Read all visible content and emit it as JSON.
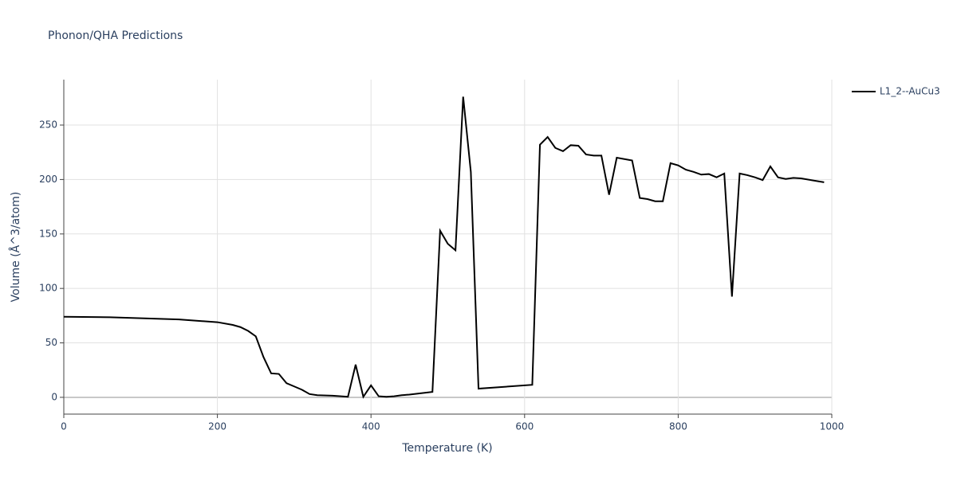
{
  "chart_data": {
    "type": "line",
    "title": "Phonon/QHA Predictions",
    "x_label": "Temperature (K)",
    "y_label": "Volume (Å^3/atom)",
    "x": [
      0,
      60,
      150,
      200,
      220,
      230,
      240,
      250,
      260,
      270,
      280,
      290,
      300,
      310,
      320,
      330,
      350,
      370,
      380,
      390,
      400,
      410,
      420,
      430,
      440,
      450,
      480,
      490,
      500,
      510,
      520,
      530,
      540,
      610,
      620,
      630,
      640,
      650,
      660,
      670,
      680,
      690,
      700,
      710,
      720,
      740,
      750,
      760,
      770,
      780,
      790,
      800,
      810,
      820,
      830,
      840,
      850,
      860,
      870,
      880,
      890,
      900,
      910,
      920,
      930,
      940,
      950,
      960,
      990
    ],
    "series": [
      {
        "name": "L1_2--AuCu3",
        "color": "#000000",
        "values": [
          74,
          73.5,
          71.5,
          69,
          66.5,
          64.5,
          61,
          56,
          37,
          22,
          21.5,
          13,
          10,
          7,
          3,
          2,
          1.5,
          0.5,
          30,
          0.5,
          11,
          1,
          0.5,
          1,
          2,
          2.5,
          5,
          153,
          141,
          135,
          276,
          207,
          8,
          11.5,
          232,
          239,
          229,
          226,
          231.5,
          231,
          223,
          222,
          222,
          186,
          220,
          217.5,
          183,
          182,
          180,
          180,
          215,
          213,
          209,
          207,
          204.5,
          205,
          202,
          205.5,
          92.5,
          205.5,
          204,
          202,
          199.5,
          212,
          202,
          200.5,
          201.5,
          201,
          197.5
        ]
      }
    ],
    "xlim": [
      0,
      1000
    ],
    "xticks": [
      0,
      200,
      400,
      600,
      800,
      1000
    ],
    "ylim": [
      -15.4,
      291.7
    ],
    "yticks": [
      0,
      50,
      100,
      150,
      200,
      250
    ],
    "grid": true,
    "legend": "right"
  }
}
